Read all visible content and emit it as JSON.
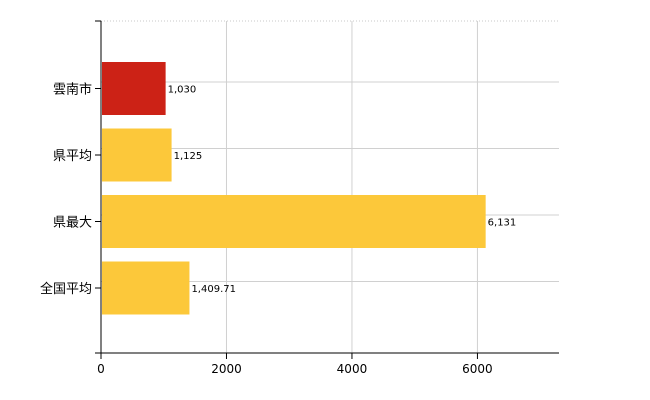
{
  "chart_data": {
    "type": "bar",
    "orientation": "horizontal",
    "categories": [
      "雲南市",
      "県平均",
      "県最大",
      "全国平均"
    ],
    "values": [
      1030,
      1125,
      6131,
      1409.71
    ],
    "value_labels": [
      "1,030",
      "1,125",
      "6,131",
      "1,409.71"
    ],
    "bar_colors": [
      "#cc2216",
      "#fcc83a",
      "#fcc83a",
      "#fcc83a"
    ],
    "xlim": [
      0,
      7300
    ],
    "xticks": [
      0,
      2000,
      4000,
      6000
    ],
    "xtick_labels": [
      "0",
      "2000",
      "4000",
      "6000"
    ],
    "grid": true,
    "title": "",
    "xlabel": "",
    "ylabel": ""
  }
}
